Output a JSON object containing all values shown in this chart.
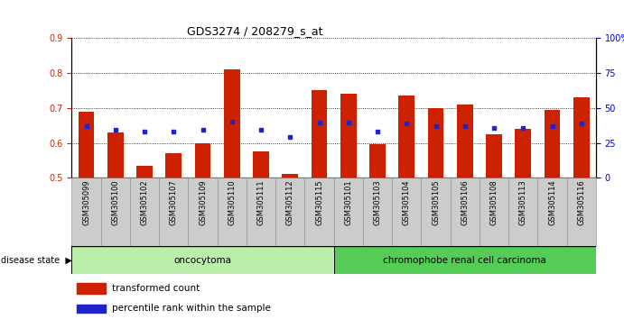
{
  "title": "GDS3274 / 208279_s_at",
  "samples": [
    "GSM305099",
    "GSM305100",
    "GSM305102",
    "GSM305107",
    "GSM305109",
    "GSM305110",
    "GSM305111",
    "GSM305112",
    "GSM305115",
    "GSM305101",
    "GSM305103",
    "GSM305104",
    "GSM305105",
    "GSM305106",
    "GSM305108",
    "GSM305113",
    "GSM305114",
    "GSM305116"
  ],
  "transformed_count": [
    0.69,
    0.63,
    0.535,
    0.57,
    0.6,
    0.81,
    0.575,
    0.51,
    0.75,
    0.74,
    0.595,
    0.735,
    0.7,
    0.71,
    0.625,
    0.64,
    0.695,
    0.73
  ],
  "percentile_rank": [
    0.648,
    0.638,
    0.632,
    0.632,
    0.638,
    0.662,
    0.638,
    0.618,
    0.658,
    0.658,
    0.632,
    0.655,
    0.648,
    0.648,
    0.642,
    0.642,
    0.648,
    0.655
  ],
  "bar_bottom": 0.5,
  "ylim": [
    0.5,
    0.9
  ],
  "yticks_left": [
    0.5,
    0.6,
    0.7,
    0.8,
    0.9
  ],
  "yticks_right": [
    0,
    25,
    50,
    75,
    100
  ],
  "bar_color": "#cc2200",
  "marker_color": "#2222cc",
  "groups": [
    {
      "label": "oncocytoma",
      "start": 0,
      "end": 9,
      "color": "#bbeeaa"
    },
    {
      "label": "chromophobe renal cell carcinoma",
      "start": 9,
      "end": 18,
      "color": "#55cc55"
    }
  ],
  "disease_state_label": "disease state",
  "legend_bar_label": "transformed count",
  "legend_marker_label": "percentile rank within the sample",
  "background_color": "#ffffff",
  "tick_label_color_left": "#cc2200",
  "tick_label_color_right": "#0000cc",
  "xtick_bg": "#cccccc"
}
